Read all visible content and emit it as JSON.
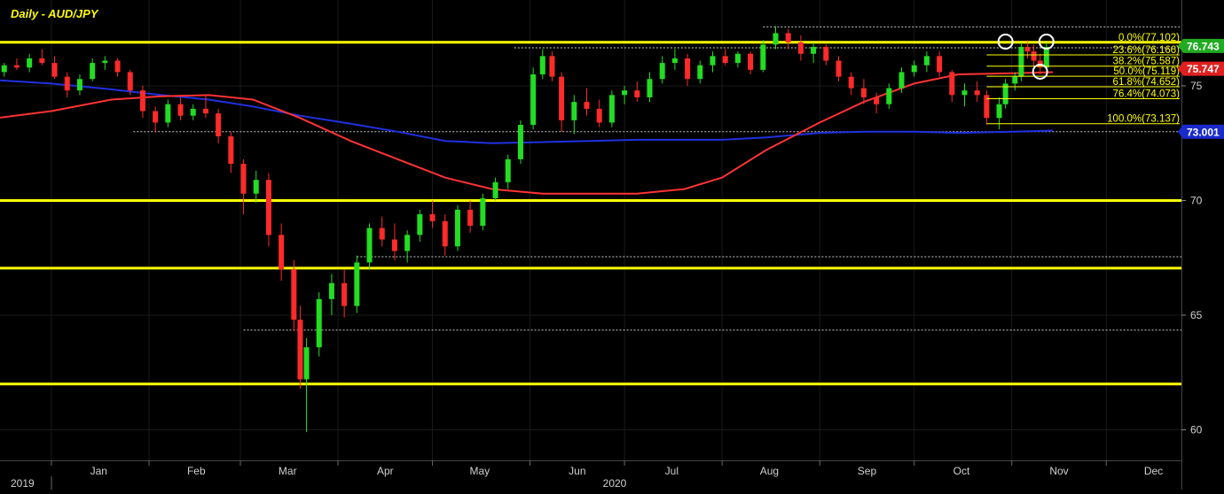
{
  "chart_data": {
    "type": "candlestick",
    "title": "Daily - AUD/JPY",
    "x_tick_labels": [
      "Jan",
      "Feb",
      "Mar",
      "Apr",
      "May",
      "Jun",
      "Jul",
      "Aug",
      "Sep",
      "Oct",
      "Nov",
      "Dec"
    ],
    "x_year_labels": [
      "2019",
      "2020"
    ],
    "y_tick_labels": [
      75,
      70,
      65,
      60
    ],
    "ylim": [
      59.5,
      77.9
    ],
    "grid": true,
    "colors": {
      "background": "#000000",
      "grid": "#1a1a1a",
      "up_candle": "#22dd22",
      "down_candle": "#ff2a2a",
      "ma_red": "#ff3333",
      "ma_blue": "#2030e0",
      "horizontal_levels": "#ffff00",
      "fib_text": "#ffff00",
      "axis_text": "#d0d0d0"
    },
    "price_badges": [
      {
        "value": 76.743,
        "label": "76.743",
        "color": "#22aa22"
      },
      {
        "value": 75.747,
        "label": "75.747",
        "color": "#e02020"
      },
      {
        "value": 73.001,
        "label": "73.001",
        "color": "#1a2acc"
      }
    ],
    "horizontal_levels": [
      76.9,
      70.0,
      67.05,
      62.0
    ],
    "dotted_levels": [
      {
        "value": 77.57,
        "from": "Aug 14"
      },
      {
        "value": 76.66,
        "from": "May 27"
      },
      {
        "value": 73.0,
        "from": "Jan 27"
      },
      {
        "value": 67.55,
        "from": "Apr 7"
      },
      {
        "value": 64.35,
        "from": "Mar 2"
      }
    ],
    "fibonacci": {
      "levels": [
        {
          "label": "0.0%(77.102)",
          "value": 76.9
        },
        {
          "label": "23.6%(76.166)",
          "value": 76.35
        },
        {
          "label": "38.2%(75.587)",
          "value": 75.86
        },
        {
          "label": "50.0%(75.119)",
          "value": 75.42
        },
        {
          "label": "61.8%(74.652)",
          "value": 74.96
        },
        {
          "label": "76.4%(74.073)",
          "value": 74.44
        },
        {
          "label": "100.0%(73.137)",
          "value": 73.35
        }
      ]
    },
    "markers": [
      {
        "date": "Oct 30",
        "value": 76.93
      },
      {
        "date": "Nov 12",
        "value": 76.93
      },
      {
        "date": "Nov 10",
        "value": 75.62
      }
    ],
    "moving_average_red": [
      {
        "x": "Dec 9",
        "y": 73.5
      },
      {
        "x": "Jan 1",
        "y": 73.9
      },
      {
        "x": "Jan 20",
        "y": 74.4
      },
      {
        "x": "Feb 5",
        "y": 74.55
      },
      {
        "x": "Feb 20",
        "y": 74.6
      },
      {
        "x": "Mar 5",
        "y": 74.4
      },
      {
        "x": "Mar 20",
        "y": 73.6
      },
      {
        "x": "Apr 5",
        "y": 72.6
      },
      {
        "x": "Apr 20",
        "y": 71.8
      },
      {
        "x": "May 5",
        "y": 71.0
      },
      {
        "x": "May 20",
        "y": 70.5
      },
      {
        "x": "Jun 5",
        "y": 70.3
      },
      {
        "x": "Jun 20",
        "y": 70.3
      },
      {
        "x": "Jul 5",
        "y": 70.3
      },
      {
        "x": "Jul 20",
        "y": 70.5
      },
      {
        "x": "Aug 1",
        "y": 71.0
      },
      {
        "x": "Aug 15",
        "y": 72.2
      },
      {
        "x": "Sep 1",
        "y": 73.4
      },
      {
        "x": "Sep 15",
        "y": 74.3
      },
      {
        "x": "Oct 1",
        "y": 75.1
      },
      {
        "x": "Oct 15",
        "y": 75.5
      },
      {
        "x": "Nov 1",
        "y": 75.55
      },
      {
        "x": "Nov 14",
        "y": 75.6
      }
    ],
    "moving_average_blue": [
      {
        "x": "Dec 9",
        "y": 75.3
      },
      {
        "x": "Jan 1",
        "y": 75.1
      },
      {
        "x": "Jan 20",
        "y": 74.85
      },
      {
        "x": "Feb 5",
        "y": 74.6
      },
      {
        "x": "Feb 20",
        "y": 74.4
      },
      {
        "x": "Mar 5",
        "y": 74.1
      },
      {
        "x": "Mar 20",
        "y": 73.7
      },
      {
        "x": "Apr 5",
        "y": 73.35
      },
      {
        "x": "Apr 20",
        "y": 73.0
      },
      {
        "x": "May 5",
        "y": 72.6
      },
      {
        "x": "May 20",
        "y": 72.5
      },
      {
        "x": "Jun 5",
        "y": 72.55
      },
      {
        "x": "Jun 20",
        "y": 72.6
      },
      {
        "x": "Jul 5",
        "y": 72.65
      },
      {
        "x": "Jul 20",
        "y": 72.65
      },
      {
        "x": "Aug 1",
        "y": 72.65
      },
      {
        "x": "Aug 15",
        "y": 72.75
      },
      {
        "x": "Sep 1",
        "y": 72.95
      },
      {
        "x": "Sep 15",
        "y": 73.0
      },
      {
        "x": "Oct 1",
        "y": 73.0
      },
      {
        "x": "Oct 15",
        "y": 72.95
      },
      {
        "x": "Nov 1",
        "y": 73.0
      },
      {
        "x": "Nov 14",
        "y": 73.05
      }
    ],
    "candles": [
      {
        "date": "Dec 9",
        "o": 75.4,
        "h": 75.7,
        "l": 75.1,
        "c": 75.5
      },
      {
        "date": "Dec 13",
        "o": 75.5,
        "h": 75.8,
        "l": 75.3,
        "c": 75.6
      },
      {
        "date": "Dec 17",
        "o": 75.6,
        "h": 76.0,
        "l": 75.4,
        "c": 75.9
      },
      {
        "date": "Dec 21",
        "o": 75.9,
        "h": 76.2,
        "l": 75.7,
        "c": 75.8
      },
      {
        "date": "Dec 25",
        "o": 75.8,
        "h": 76.4,
        "l": 75.6,
        "c": 76.2
      },
      {
        "date": "Dec 29",
        "o": 76.2,
        "h": 76.6,
        "l": 75.9,
        "c": 76.0
      },
      {
        "date": "Jan 2",
        "o": 76.0,
        "h": 76.3,
        "l": 75.3,
        "c": 75.4
      },
      {
        "date": "Jan 6",
        "o": 75.4,
        "h": 75.6,
        "l": 74.5,
        "c": 74.8
      },
      {
        "date": "Jan 10",
        "o": 74.8,
        "h": 75.5,
        "l": 74.6,
        "c": 75.3
      },
      {
        "date": "Jan 14",
        "o": 75.3,
        "h": 76.2,
        "l": 75.2,
        "c": 76.0
      },
      {
        "date": "Jan 18",
        "o": 76.0,
        "h": 76.3,
        "l": 75.7,
        "c": 76.1
      },
      {
        "date": "Jan 22",
        "o": 76.1,
        "h": 76.2,
        "l": 75.4,
        "c": 75.6
      },
      {
        "date": "Jan 26",
        "o": 75.6,
        "h": 75.7,
        "l": 74.6,
        "c": 74.8
      },
      {
        "date": "Jan 30",
        "o": 74.8,
        "h": 75.0,
        "l": 73.6,
        "c": 73.9
      },
      {
        "date": "Feb 3",
        "o": 73.9,
        "h": 74.1,
        "l": 73.0,
        "c": 73.4
      },
      {
        "date": "Feb 7",
        "o": 73.4,
        "h": 74.4,
        "l": 73.2,
        "c": 74.2
      },
      {
        "date": "Feb 11",
        "o": 74.2,
        "h": 74.5,
        "l": 73.5,
        "c": 73.7
      },
      {
        "date": "Feb 15",
        "o": 73.7,
        "h": 74.2,
        "l": 73.5,
        "c": 74.0
      },
      {
        "date": "Feb 19",
        "o": 74.0,
        "h": 74.6,
        "l": 73.6,
        "c": 73.8
      },
      {
        "date": "Feb 23",
        "o": 73.8,
        "h": 74.0,
        "l": 72.5,
        "c": 72.8
      },
      {
        "date": "Feb 27",
        "o": 72.8,
        "h": 73.0,
        "l": 71.2,
        "c": 71.6
      },
      {
        "date": "Mar 2",
        "o": 71.6,
        "h": 71.8,
        "l": 69.4,
        "c": 70.3
      },
      {
        "date": "Mar 6",
        "o": 70.3,
        "h": 71.3,
        "l": 69.9,
        "c": 70.9
      },
      {
        "date": "Mar 10",
        "o": 70.9,
        "h": 71.2,
        "l": 68.0,
        "c": 68.5
      },
      {
        "date": "Mar 14",
        "o": 68.5,
        "h": 69.0,
        "l": 66.5,
        "c": 67.0
      },
      {
        "date": "Mar 18",
        "o": 67.0,
        "h": 67.4,
        "l": 64.3,
        "c": 64.8
      },
      {
        "date": "Mar 20",
        "o": 64.8,
        "h": 65.4,
        "l": 61.8,
        "c": 62.2
      },
      {
        "date": "Mar 22",
        "o": 62.2,
        "h": 64.0,
        "l": 59.9,
        "c": 63.6
      },
      {
        "date": "Mar 26",
        "o": 63.6,
        "h": 66.0,
        "l": 63.2,
        "c": 65.7
      },
      {
        "date": "Mar 30",
        "o": 65.7,
        "h": 66.8,
        "l": 65.0,
        "c": 66.4
      },
      {
        "date": "Apr 3",
        "o": 66.4,
        "h": 67.0,
        "l": 64.9,
        "c": 65.4
      },
      {
        "date": "Apr 7",
        "o": 65.4,
        "h": 67.6,
        "l": 65.1,
        "c": 67.3
      },
      {
        "date": "Apr 11",
        "o": 67.3,
        "h": 69.0,
        "l": 67.0,
        "c": 68.8
      },
      {
        "date": "Apr 15",
        "o": 68.8,
        "h": 69.3,
        "l": 68.0,
        "c": 68.3
      },
      {
        "date": "Apr 19",
        "o": 68.3,
        "h": 69.0,
        "l": 67.4,
        "c": 67.8
      },
      {
        "date": "Apr 23",
        "o": 67.8,
        "h": 68.7,
        "l": 67.3,
        "c": 68.5
      },
      {
        "date": "Apr 27",
        "o": 68.5,
        "h": 69.6,
        "l": 68.2,
        "c": 69.4
      },
      {
        "date": "May 1",
        "o": 69.4,
        "h": 70.0,
        "l": 68.8,
        "c": 69.1
      },
      {
        "date": "May 5",
        "o": 69.1,
        "h": 69.4,
        "l": 67.6,
        "c": 68.0
      },
      {
        "date": "May 9",
        "o": 68.0,
        "h": 69.8,
        "l": 67.8,
        "c": 69.6
      },
      {
        "date": "May 13",
        "o": 69.6,
        "h": 70.0,
        "l": 68.6,
        "c": 68.9
      },
      {
        "date": "May 17",
        "o": 68.9,
        "h": 70.3,
        "l": 68.7,
        "c": 70.1
      },
      {
        "date": "May 21",
        "o": 70.1,
        "h": 71.0,
        "l": 70.0,
        "c": 70.8
      },
      {
        "date": "May 25",
        "o": 70.8,
        "h": 72.0,
        "l": 70.5,
        "c": 71.8
      },
      {
        "date": "May 29",
        "o": 71.8,
        "h": 73.5,
        "l": 71.6,
        "c": 73.3
      },
      {
        "date": "Jun 2",
        "o": 73.3,
        "h": 75.8,
        "l": 73.1,
        "c": 75.5
      },
      {
        "date": "Jun 5",
        "o": 75.5,
        "h": 76.6,
        "l": 75.3,
        "c": 76.3
      },
      {
        "date": "Jun 8",
        "o": 76.3,
        "h": 76.5,
        "l": 75.2,
        "c": 75.4
      },
      {
        "date": "Jun 11",
        "o": 75.4,
        "h": 75.6,
        "l": 73.0,
        "c": 73.5
      },
      {
        "date": "Jun 15",
        "o": 73.5,
        "h": 74.6,
        "l": 72.9,
        "c": 74.3
      },
      {
        "date": "Jun 19",
        "o": 74.3,
        "h": 74.9,
        "l": 73.7,
        "c": 74.0
      },
      {
        "date": "Jun 23",
        "o": 74.0,
        "h": 74.4,
        "l": 73.2,
        "c": 73.4
      },
      {
        "date": "Jun 27",
        "o": 73.4,
        "h": 74.8,
        "l": 73.2,
        "c": 74.6
      },
      {
        "date": "Jul 1",
        "o": 74.6,
        "h": 75.0,
        "l": 74.2,
        "c": 74.8
      },
      {
        "date": "Jul 5",
        "o": 74.8,
        "h": 75.2,
        "l": 74.3,
        "c": 74.5
      },
      {
        "date": "Jul 9",
        "o": 74.5,
        "h": 75.6,
        "l": 74.3,
        "c": 75.3
      },
      {
        "date": "Jul 13",
        "o": 75.3,
        "h": 76.3,
        "l": 75.1,
        "c": 76.0
      },
      {
        "date": "Jul 17",
        "o": 76.0,
        "h": 76.6,
        "l": 75.7,
        "c": 76.2
      },
      {
        "date": "Jul 21",
        "o": 76.2,
        "h": 76.4,
        "l": 75.0,
        "c": 75.3
      },
      {
        "date": "Jul 25",
        "o": 75.3,
        "h": 76.1,
        "l": 75.1,
        "c": 75.9
      },
      {
        "date": "Jul 29",
        "o": 75.9,
        "h": 76.5,
        "l": 75.6,
        "c": 76.3
      },
      {
        "date": "Aug 2",
        "o": 76.3,
        "h": 76.6,
        "l": 75.9,
        "c": 76.0
      },
      {
        "date": "Aug 6",
        "o": 76.0,
        "h": 76.5,
        "l": 75.8,
        "c": 76.4
      },
      {
        "date": "Aug 10",
        "o": 76.4,
        "h": 76.5,
        "l": 75.5,
        "c": 75.7
      },
      {
        "date": "Aug 14",
        "o": 75.7,
        "h": 77.0,
        "l": 75.6,
        "c": 76.8
      },
      {
        "date": "Aug 18",
        "o": 76.8,
        "h": 77.6,
        "l": 76.6,
        "c": 77.3
      },
      {
        "date": "Aug 22",
        "o": 77.3,
        "h": 77.5,
        "l": 76.6,
        "c": 76.9
      },
      {
        "date": "Aug 26",
        "o": 76.9,
        "h": 77.2,
        "l": 76.1,
        "c": 76.4
      },
      {
        "date": "Aug 30",
        "o": 76.4,
        "h": 76.9,
        "l": 76.0,
        "c": 76.7
      },
      {
        "date": "Sep 3",
        "o": 76.7,
        "h": 76.8,
        "l": 75.9,
        "c": 76.1
      },
      {
        "date": "Sep 7",
        "o": 76.1,
        "h": 76.3,
        "l": 75.2,
        "c": 75.4
      },
      {
        "date": "Sep 11",
        "o": 75.4,
        "h": 75.6,
        "l": 74.6,
        "c": 74.9
      },
      {
        "date": "Sep 15",
        "o": 74.9,
        "h": 75.3,
        "l": 74.2,
        "c": 74.5
      },
      {
        "date": "Sep 19",
        "o": 74.5,
        "h": 74.7,
        "l": 73.8,
        "c": 74.2
      },
      {
        "date": "Sep 23",
        "o": 74.2,
        "h": 75.1,
        "l": 74.0,
        "c": 74.9
      },
      {
        "date": "Sep 27",
        "o": 74.9,
        "h": 75.8,
        "l": 74.7,
        "c": 75.6
      },
      {
        "date": "Oct 1",
        "o": 75.6,
        "h": 76.1,
        "l": 75.4,
        "c": 75.9
      },
      {
        "date": "Oct 5",
        "o": 75.9,
        "h": 76.5,
        "l": 75.6,
        "c": 76.3
      },
      {
        "date": "Oct 9",
        "o": 76.3,
        "h": 76.5,
        "l": 75.4,
        "c": 75.6
      },
      {
        "date": "Oct 13",
        "o": 75.6,
        "h": 75.7,
        "l": 74.3,
        "c": 74.6
      },
      {
        "date": "Oct 17",
        "o": 74.6,
        "h": 75.1,
        "l": 74.1,
        "c": 74.8
      },
      {
        "date": "Oct 21",
        "o": 74.8,
        "h": 75.2,
        "l": 74.3,
        "c": 74.6
      },
      {
        "date": "Oct 24",
        "o": 74.6,
        "h": 74.8,
        "l": 73.3,
        "c": 73.6
      },
      {
        "date": "Oct 28",
        "o": 73.6,
        "h": 74.5,
        "l": 73.1,
        "c": 74.2
      },
      {
        "date": "Oct 30",
        "o": 74.2,
        "h": 75.3,
        "l": 74.0,
        "c": 75.1
      },
      {
        "date": "Nov 2",
        "o": 75.1,
        "h": 75.6,
        "l": 74.8,
        "c": 75.4
      },
      {
        "date": "Nov 4",
        "o": 75.4,
        "h": 76.9,
        "l": 75.2,
        "c": 76.7
      },
      {
        "date": "Nov 6",
        "o": 76.7,
        "h": 77.0,
        "l": 76.2,
        "c": 76.5
      },
      {
        "date": "Nov 8",
        "o": 76.5,
        "h": 76.8,
        "l": 75.8,
        "c": 76.1
      },
      {
        "date": "Nov 10",
        "o": 76.1,
        "h": 76.4,
        "l": 75.5,
        "c": 75.8
      },
      {
        "date": "Nov 12",
        "o": 75.8,
        "h": 76.9,
        "l": 75.7,
        "c": 76.7
      }
    ]
  }
}
